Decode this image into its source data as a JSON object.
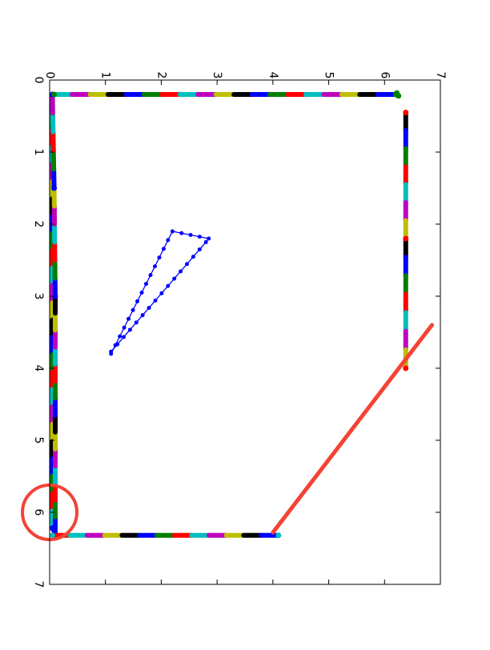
{
  "chart_data": {
    "type": "scatter",
    "orientation": "rotated-90-clockwise",
    "title": "",
    "xlabel": "",
    "ylabel": "",
    "xlim": [
      0,
      7
    ],
    "ylim": [
      0,
      7
    ],
    "xticks": [
      "0",
      "1",
      "2",
      "3",
      "4",
      "5",
      "6",
      "7"
    ],
    "yticks": [
      "0",
      "1",
      "2",
      "3",
      "4",
      "5",
      "6",
      "7"
    ],
    "grid": false,
    "legend": "none",
    "series_colors": [
      "#0000ff",
      "#008000",
      "#ff0000",
      "#00bfbf",
      "#bf00bf",
      "#bfbf00",
      "#000000"
    ],
    "series": [
      {
        "type": "track",
        "x": [
          0.05,
          0.05,
          0.08,
          0.1,
          0.1,
          0.08,
          0.05
        ],
        "y": [
          0.2,
          6.22,
          6.25,
          6.3,
          3.0,
          1.5,
          0.2
        ]
      },
      {
        "type": "track",
        "x": [
          0.08,
          6.2,
          6.25,
          6.22
        ],
        "y": [
          0.2,
          0.2,
          0.22,
          0.18
        ]
      },
      {
        "type": "track",
        "x": [
          6.38,
          6.38,
          6.38
        ],
        "y": [
          0.45,
          2.2,
          4.0
        ]
      },
      {
        "type": "track",
        "x": [
          0.05,
          4.1
        ],
        "y": [
          6.32,
          6.32
        ]
      },
      {
        "type": "line",
        "x": [
          2.2,
          2.85,
          2.8,
          1.1,
          1.1,
          2.2
        ],
        "y": [
          2.1,
          2.2,
          2.25,
          3.77,
          3.8,
          2.1
        ]
      }
    ],
    "annotations": [
      {
        "type": "circle",
        "x": 0.0,
        "y": 6.0,
        "color": "#f44336"
      },
      {
        "type": "line",
        "x": [
          4.0,
          6.85
        ],
        "y": [
          6.28,
          3.4
        ],
        "color": "#f44336"
      }
    ]
  }
}
